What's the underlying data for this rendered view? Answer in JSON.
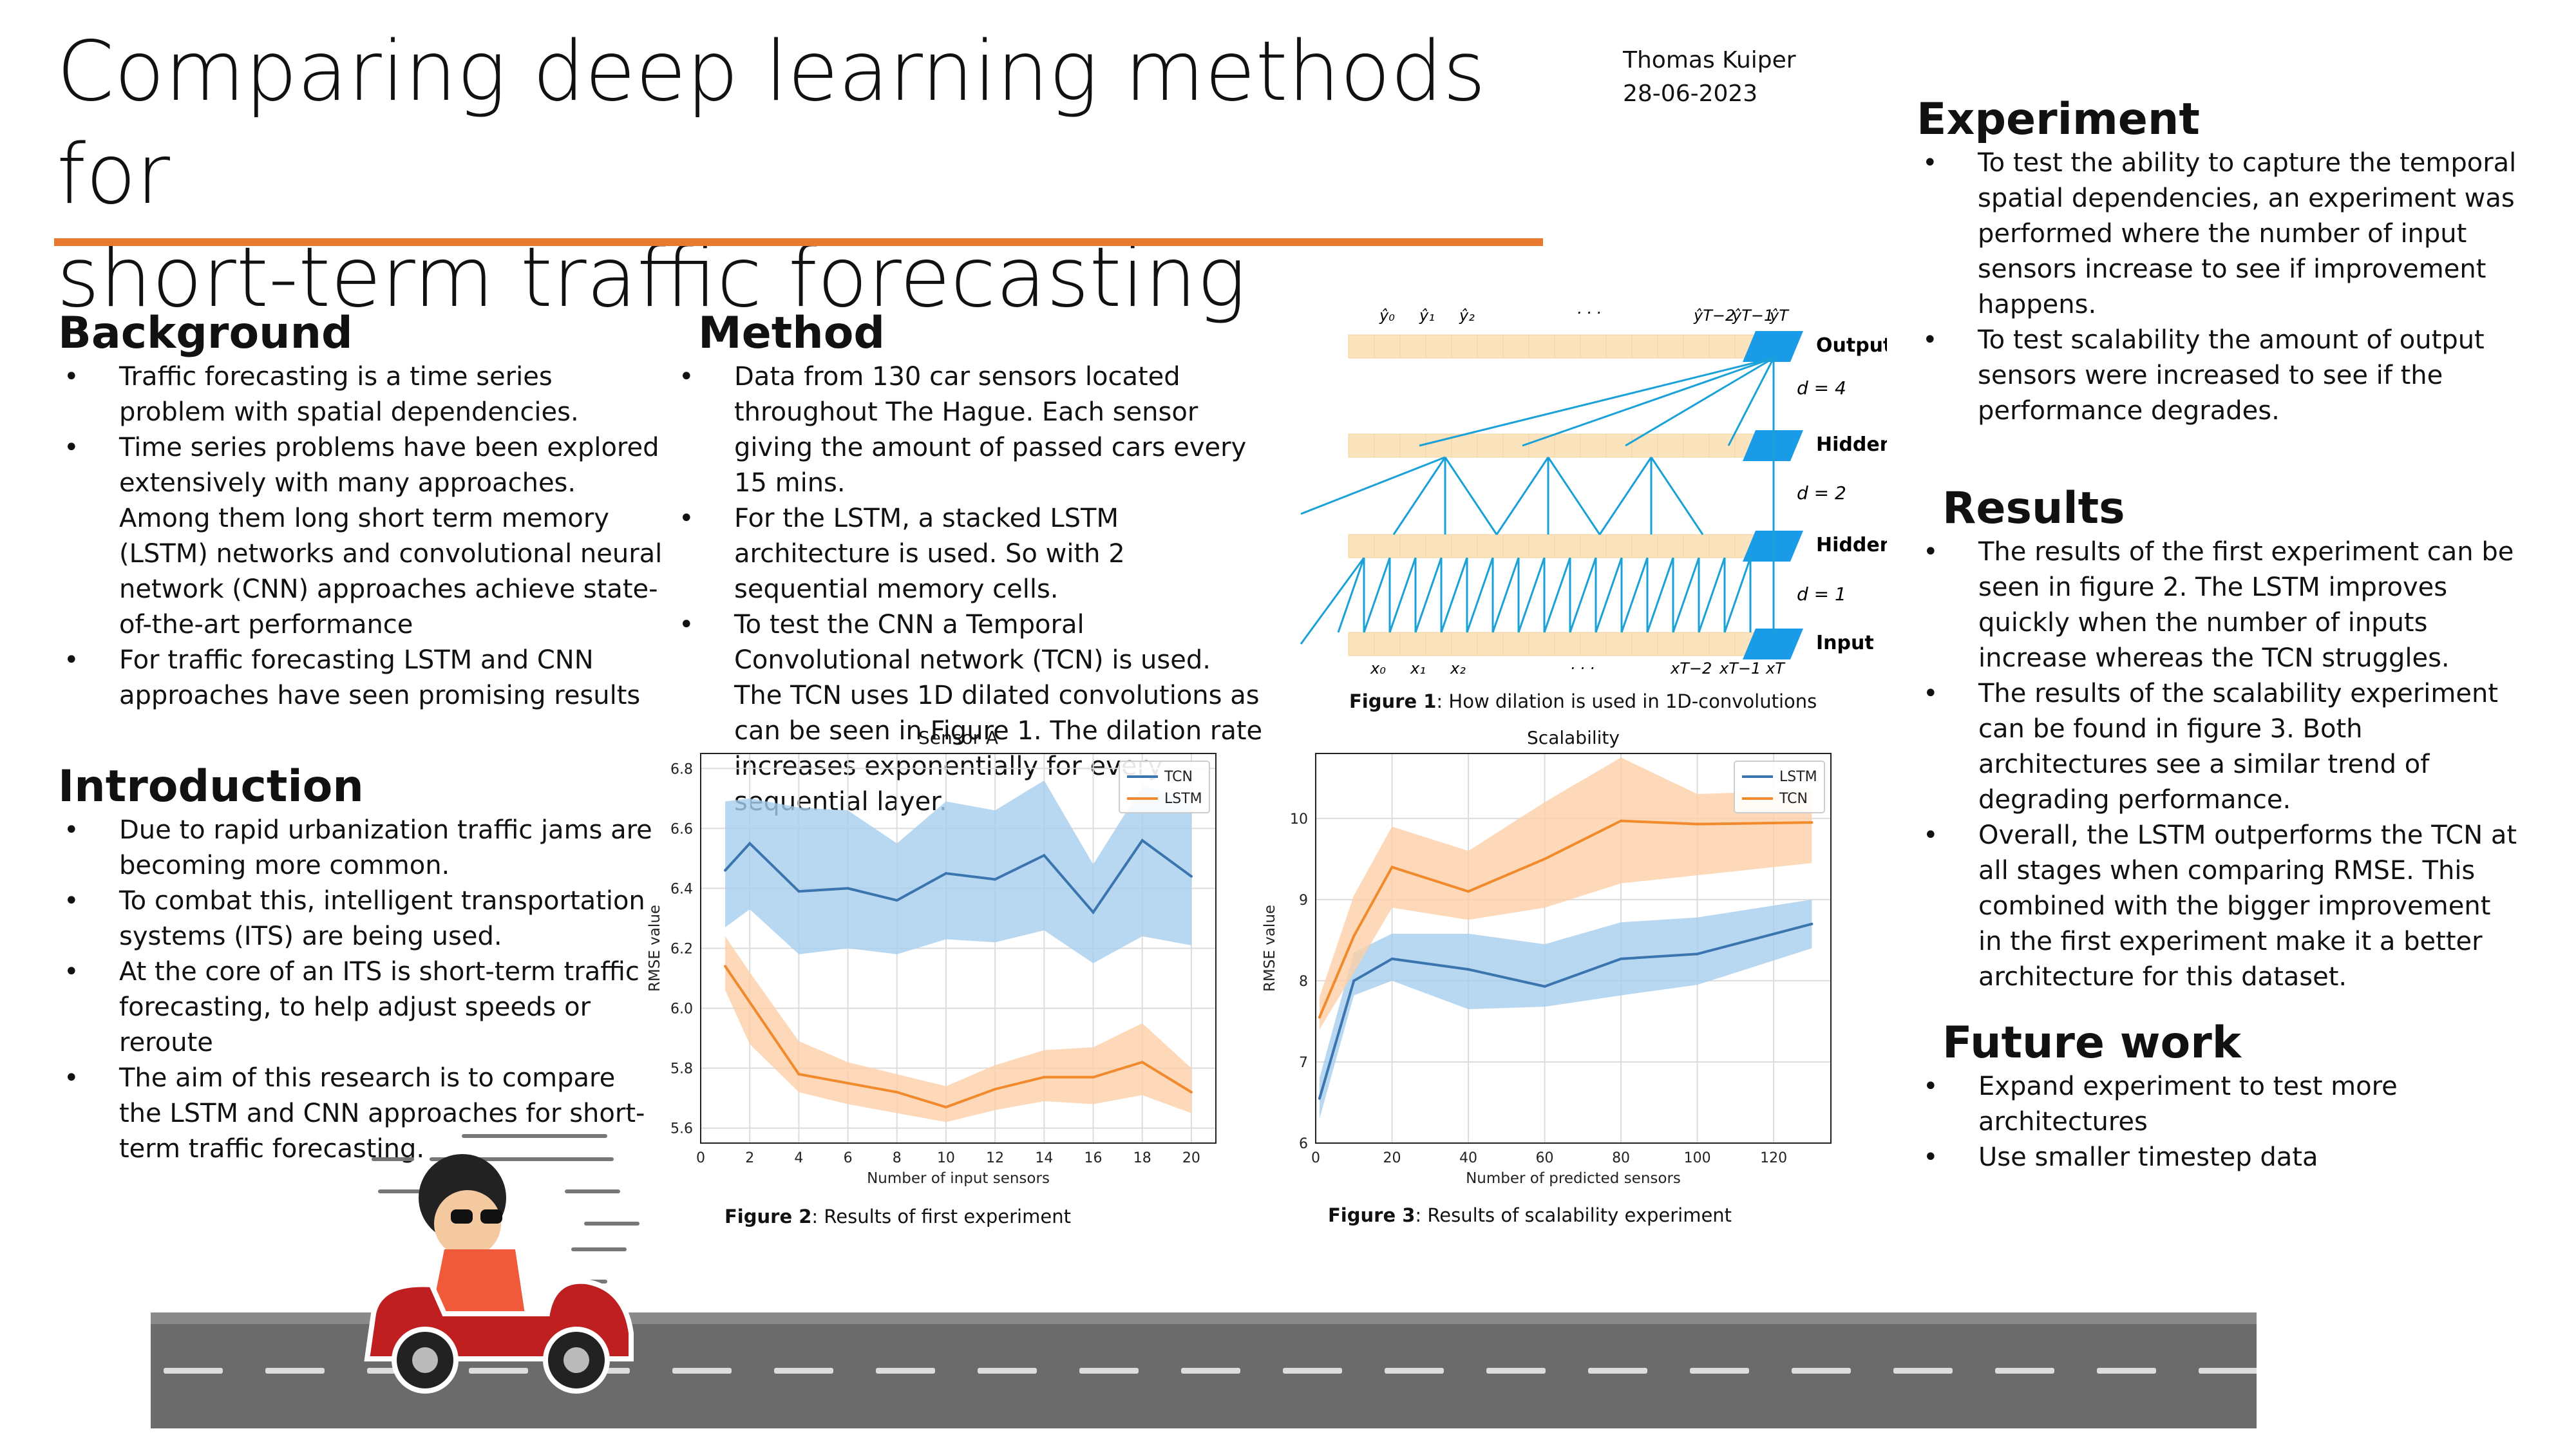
{
  "title_line1": "Comparing deep learning methods for",
  "title_line2": "short-term traffic forecasting",
  "author": "Thomas Kuiper",
  "date": "28-06-2023",
  "background": {
    "heading": "Background",
    "items": [
      "Traffic forecasting is a time series problem with spatial dependencies.",
      "Time series problems have been explored extensively with many approaches. Among them long short term memory (LSTM) networks and convolutional neural network (CNN) approaches achieve state-of-the-art performance",
      "For traffic forecasting LSTM and CNN approaches have seen promising results"
    ]
  },
  "introduction": {
    "heading": "Introduction",
    "items": [
      "Due to rapid urbanization traffic jams are becoming more common.",
      "To combat this, intelligent transportation systems (ITS) are being used.",
      "At the core of an ITS is short-term traffic forecasting, to help adjust speeds or reroute",
      "The aim of this research is to compare the LSTM and CNN approaches for short-term traffic forecasting."
    ]
  },
  "method": {
    "heading": "Method",
    "items": [
      "Data from 130 car sensors located throughout The Hague. Each sensor giving the amount of passed cars every 15 mins.",
      "For the LSTM, a stacked LSTM architecture is used. So with 2 sequential memory cells.",
      "To test the CNN a Temporal Convolutional network (TCN) is used. The TCN uses 1D dilated convolutions as can be seen in Figure 1. The dilation rate increases exponentially for every sequential layer."
    ]
  },
  "experiment": {
    "heading": "Experiment",
    "items": [
      "To test the ability to capture the temporal spatial dependencies, an experiment was performed where the number of input sensors increase to see if improvement happens.",
      "To test scalability the amount of output sensors were increased to see if the performance degrades."
    ]
  },
  "results": {
    "heading": "Results",
    "items": [
      "The results of the first experiment can be seen in figure 2. The LSTM improves quickly when the number of inputs increase whereas the TCN struggles.",
      "The results of the scalability experiment can be found in figure 3. Both architectures see a similar trend of degrading performance.",
      "Overall, the LSTM outperforms the TCN at all stages when comparing RMSE. This combined with the bigger improvement in the first experiment make it a better architecture for this dataset."
    ]
  },
  "future_work": {
    "heading": "Future work",
    "items": [
      "Expand experiment to test more architectures",
      "Use smaller timestep data"
    ]
  },
  "figure1": {
    "caption_label": "Figure 1",
    "caption_text": ": How dilation is used in 1D-convolutions",
    "layer_labels": [
      "Output",
      "Hidden",
      "Hidden",
      "Input"
    ],
    "dilation_labels": [
      "d = 4",
      "d = 2",
      "d = 1"
    ],
    "top_labels": [
      "ŷ₀",
      "ŷ₁",
      "ŷ₂",
      "· · ·",
      "ŷT−2",
      "ŷT−1",
      "ŷT"
    ],
    "bottom_labels": [
      "x₀",
      "x₁",
      "x₂",
      "· · ·",
      "xT−2",
      "xT−1",
      "xT"
    ],
    "colors": {
      "cell": "#fbe3bd",
      "active": "#1a9be8",
      "line": "#1aa2d8"
    }
  },
  "figure2": {
    "caption_label": "Figure 2",
    "caption_text": ": Results of first experiment"
  },
  "figure3": {
    "caption_label": "Figure 3",
    "caption_text": ": Results of scalability experiment"
  },
  "chart_data": [
    {
      "type": "line",
      "title": "Sensor A",
      "xlabel": "Number of input sensors",
      "ylabel": "RMSE value",
      "xlim": [
        0,
        21
      ],
      "ylim": [
        5.55,
        6.85
      ],
      "xticks": [
        0,
        2,
        4,
        6,
        8,
        10,
        12,
        14,
        16,
        18,
        20
      ],
      "yticks": [
        5.6,
        5.8,
        6.0,
        6.2,
        6.4,
        6.6,
        6.8
      ],
      "grid": true,
      "legend": "top-right",
      "x": [
        1,
        2,
        4,
        6,
        8,
        10,
        12,
        14,
        16,
        18,
        20
      ],
      "series": [
        {
          "name": "TCN",
          "color": "#3b75af",
          "band_color": "#a6cdee",
          "values": [
            6.46,
            6.55,
            6.39,
            6.4,
            6.36,
            6.45,
            6.43,
            6.51,
            6.32,
            6.56,
            6.44
          ],
          "lower": [
            6.27,
            6.33,
            6.18,
            6.2,
            6.18,
            6.23,
            6.22,
            6.26,
            6.15,
            6.24,
            6.21
          ],
          "upper": [
            6.69,
            6.7,
            6.67,
            6.66,
            6.55,
            6.69,
            6.66,
            6.76,
            6.48,
            6.74,
            6.7
          ]
        },
        {
          "name": "LSTM",
          "color": "#f08a2c",
          "band_color": "#fcd0a8",
          "values": [
            6.14,
            6.02,
            5.78,
            5.75,
            5.72,
            5.67,
            5.73,
            5.77,
            5.77,
            5.82,
            5.72
          ],
          "lower": [
            6.06,
            5.88,
            5.72,
            5.68,
            5.65,
            5.62,
            5.66,
            5.69,
            5.68,
            5.71,
            5.65
          ],
          "upper": [
            6.24,
            6.12,
            5.89,
            5.82,
            5.78,
            5.74,
            5.81,
            5.86,
            5.87,
            5.95,
            5.8
          ]
        }
      ]
    },
    {
      "type": "line",
      "title": "Scalability",
      "xlabel": "Number of predicted sensors",
      "ylabel": "RMSE value",
      "xlim": [
        0,
        135
      ],
      "ylim": [
        6,
        10.8
      ],
      "xticks": [
        0,
        20,
        40,
        60,
        80,
        100,
        120
      ],
      "yticks": [
        6,
        7,
        8,
        9,
        10
      ],
      "grid": true,
      "legend": "top-right",
      "x": [
        1,
        10,
        20,
        40,
        60,
        80,
        100,
        130
      ],
      "series": [
        {
          "name": "LSTM",
          "color": "#3b75af",
          "band_color": "#a6cdee",
          "values": [
            6.55,
            8.0,
            8.27,
            8.14,
            7.93,
            8.27,
            8.33,
            8.7
          ],
          "lower": [
            6.3,
            7.82,
            8.0,
            7.65,
            7.68,
            7.82,
            7.95,
            8.4
          ],
          "upper": [
            6.8,
            8.35,
            8.58,
            8.58,
            8.45,
            8.72,
            8.78,
            9.0
          ]
        },
        {
          "name": "TCN",
          "color": "#f08a2c",
          "band_color": "#fcd0a8",
          "values": [
            7.55,
            8.55,
            9.4,
            9.1,
            9.5,
            9.97,
            9.93,
            9.95
          ],
          "lower": [
            7.4,
            8.1,
            8.9,
            8.75,
            8.9,
            9.2,
            9.3,
            9.45
          ],
          "upper": [
            7.8,
            9.05,
            9.9,
            9.6,
            10.2,
            10.75,
            10.3,
            10.35
          ]
        }
      ]
    }
  ],
  "road": {
    "colors": {
      "asphalt": "#6b6b6b",
      "dash": "#dddddd"
    }
  },
  "car": {
    "colors": {
      "body": "#c01f22",
      "shirt": "#f05a3a",
      "skin": "#f4c9a0",
      "hair": "#222222"
    }
  }
}
